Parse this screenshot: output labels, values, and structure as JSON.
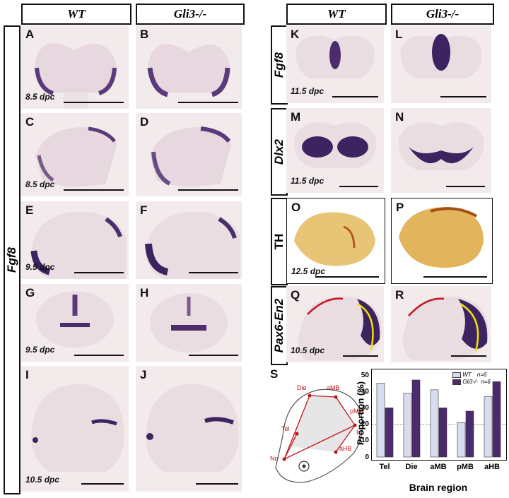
{
  "headers": {
    "wt_left": "WT",
    "gli_left": "Gli3-/-",
    "wt_right": "WT",
    "gli_right": "Gli3-/-"
  },
  "left_vertical_label": "Fgf8",
  "right_row_labels": [
    "Fgf8",
    "Dlx2",
    "TH",
    "Pax6-En2"
  ],
  "panels": {
    "A": "A",
    "B": "B",
    "C": "C",
    "D": "D",
    "E": "E",
    "F": "F",
    "G": "G",
    "H": "H",
    "I": "I",
    "J": "J",
    "K": "K",
    "L": "L",
    "M": "M",
    "N": "N",
    "O": "O",
    "P": "P",
    "Q": "Q",
    "R": "R",
    "S": "S"
  },
  "stages": {
    "a": "8.5 dpc",
    "c": "8.5 dpc",
    "e": "9.5 dpc",
    "g": "9.5 dpc",
    "i": "10.5 dpc",
    "k": "11.5 dpc",
    "m": "11.5 dpc",
    "o": "12.5 dpc",
    "q": "10.5 dpc"
  },
  "diagram_labels": {
    "die": "Die",
    "amb": "aMB",
    "pmb": "pMB",
    "tel": "Tel",
    "is": "Is",
    "ahb": "aHB",
    "no": "No"
  },
  "chart_data": {
    "type": "bar",
    "ylabel": "Proportion (%)",
    "xlabel": "Brain region",
    "categories": [
      "Tel",
      "Die",
      "aMB",
      "pMB",
      "aHB"
    ],
    "yticks": [
      "0",
      "10",
      "20",
      "30",
      "40",
      "50"
    ],
    "ylim": [
      0,
      50
    ],
    "series": [
      {
        "name": "WT",
        "n": "n=6",
        "values": [
          45,
          39,
          41,
          21,
          37
        ],
        "color": "#d9dcef"
      },
      {
        "name": "Gli3-/-",
        "n": "n=6",
        "values": [
          30,
          47,
          30,
          28,
          46
        ],
        "color": "#4b2a6e"
      }
    ]
  }
}
